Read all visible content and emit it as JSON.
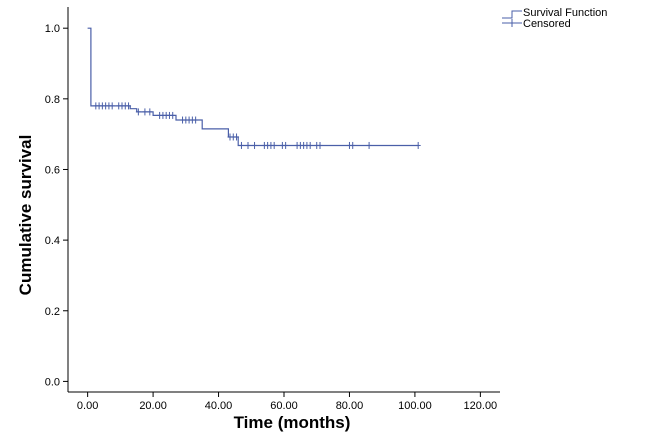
{
  "chart_data": {
    "type": "line",
    "title": "",
    "xlabel": "Time (months)",
    "ylabel": "Cumulative survival",
    "xlim": [
      -6,
      126
    ],
    "ylim": [
      -0.03,
      1.06
    ],
    "x_ticks": [
      0,
      20,
      40,
      60,
      80,
      100,
      120
    ],
    "x_tick_labels": [
      "0.00",
      "20.00",
      "40.00",
      "60.00",
      "80.00",
      "100.00",
      "120.00"
    ],
    "y_ticks": [
      0,
      0.2,
      0.4,
      0.6,
      0.8,
      1.0
    ],
    "y_tick_labels": [
      "0.0",
      "0.2",
      "0.4",
      "0.6",
      "0.8",
      "1.0"
    ],
    "grid": false,
    "legend_position": "top-right",
    "colors": {
      "survival": "#4a5fa8",
      "axis": "#000000"
    },
    "series": [
      {
        "name": "Survival Function",
        "kind": "step",
        "points": [
          [
            0,
            1.0
          ],
          [
            1,
            1.0
          ],
          [
            1,
            0.78
          ],
          [
            13,
            0.78
          ],
          [
            13,
            0.772
          ],
          [
            15,
            0.772
          ],
          [
            15,
            0.763
          ],
          [
            20,
            0.763
          ],
          [
            20,
            0.753
          ],
          [
            27,
            0.753
          ],
          [
            27,
            0.74
          ],
          [
            35,
            0.74
          ],
          [
            35,
            0.715
          ],
          [
            43,
            0.715
          ],
          [
            43,
            0.692
          ],
          [
            46,
            0.692
          ],
          [
            46,
            0.668
          ],
          [
            101,
            0.668
          ]
        ]
      },
      {
        "name": "Censored",
        "kind": "marker",
        "points": [
          [
            2.5,
            0.78
          ],
          [
            3.5,
            0.78
          ],
          [
            4.5,
            0.78
          ],
          [
            5.5,
            0.78
          ],
          [
            6.5,
            0.78
          ],
          [
            7.5,
            0.78
          ],
          [
            9.5,
            0.78
          ],
          [
            10.5,
            0.78
          ],
          [
            11.5,
            0.78
          ],
          [
            12.5,
            0.78
          ],
          [
            15.5,
            0.763
          ],
          [
            17.5,
            0.763
          ],
          [
            19,
            0.763
          ],
          [
            22,
            0.753
          ],
          [
            23,
            0.753
          ],
          [
            24,
            0.753
          ],
          [
            25,
            0.753
          ],
          [
            26,
            0.753
          ],
          [
            29,
            0.74
          ],
          [
            30,
            0.74
          ],
          [
            31,
            0.74
          ],
          [
            32,
            0.74
          ],
          [
            33,
            0.74
          ],
          [
            43.5,
            0.692
          ],
          [
            44.5,
            0.692
          ],
          [
            45.5,
            0.692
          ],
          [
            47,
            0.668
          ],
          [
            49,
            0.668
          ],
          [
            51,
            0.668
          ],
          [
            54,
            0.668
          ],
          [
            55,
            0.668
          ],
          [
            56,
            0.668
          ],
          [
            57,
            0.668
          ],
          [
            59.5,
            0.668
          ],
          [
            60.5,
            0.668
          ],
          [
            64,
            0.668
          ],
          [
            65,
            0.668
          ],
          [
            66,
            0.668
          ],
          [
            67,
            0.668
          ],
          [
            68,
            0.668
          ],
          [
            70,
            0.668
          ],
          [
            71,
            0.668
          ],
          [
            80,
            0.668
          ],
          [
            81,
            0.668
          ],
          [
            86,
            0.668
          ],
          [
            101,
            0.668
          ]
        ]
      }
    ]
  }
}
